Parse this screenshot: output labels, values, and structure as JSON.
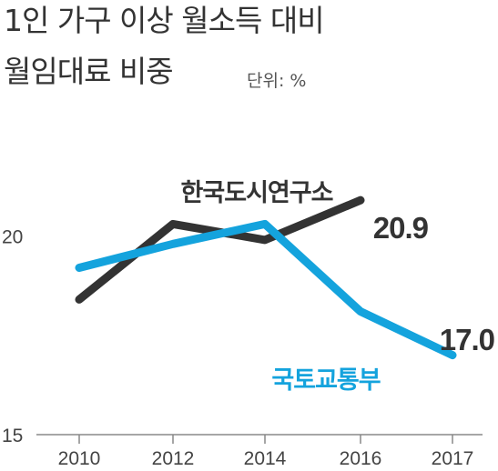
{
  "title_line1": "1인 가구 이상 월소득 대비",
  "title_line2": "월임대료 비중",
  "unit_label": "단위: %",
  "colors": {
    "series_kurc": "#333333",
    "series_molit": "#14a3dd",
    "axis": "#888888"
  },
  "chart_data": {
    "type": "line",
    "title": "1인 가구 이상 월소득 대비 월임대료 비중",
    "unit": "단위: %",
    "x": [
      "2010",
      "2012",
      "2014",
      "2016",
      "2017"
    ],
    "yticks": [
      "15",
      "20"
    ],
    "ylim": [
      15,
      21.5
    ],
    "grid": false,
    "series": [
      {
        "name": "한국도시연구소",
        "color": "#333333",
        "values": [
          18.4,
          20.3,
          19.9,
          20.9,
          null
        ],
        "end_label": "20.9"
      },
      {
        "name": "국토교통부",
        "color": "#14a3dd",
        "values": [
          19.2,
          19.8,
          20.3,
          18.1,
          17.0
        ],
        "end_label": "17.0"
      }
    ]
  }
}
